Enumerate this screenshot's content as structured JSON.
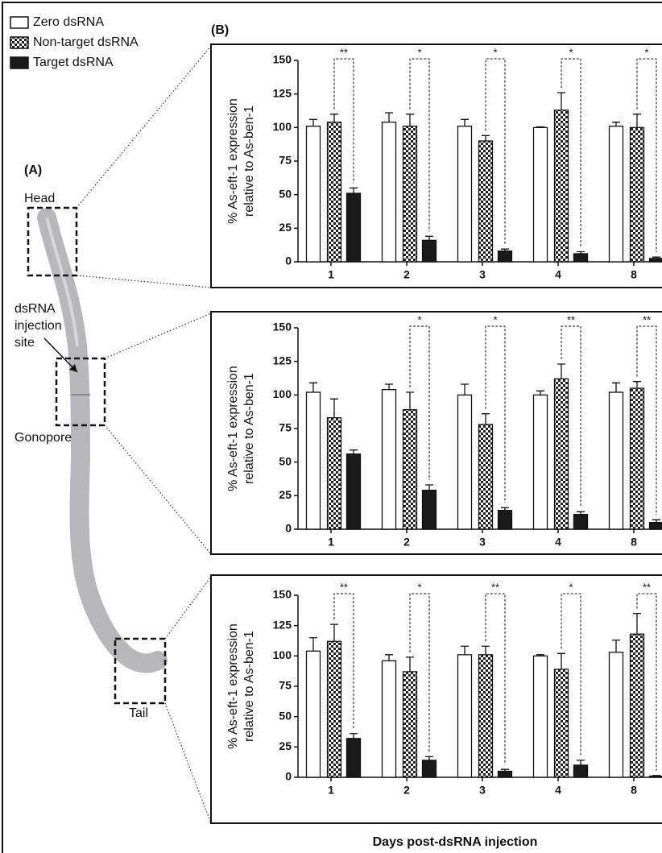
{
  "legend": [
    {
      "name": "Zero dsRNA",
      "fill": "#ffffff"
    },
    {
      "name": "Non-target dsRNA",
      "fill": "checker"
    },
    {
      "name": "Target dsRNA",
      "fill": "#1a1a1a"
    }
  ],
  "panel_a": {
    "label": "(A)",
    "head": "Head",
    "injection_site": [
      "dsRNA",
      "injection",
      "site"
    ],
    "gonopore": "Gonopore",
    "tail": "Tail"
  },
  "panel_b_label": "(B)",
  "x_label": "Days post-dsRNA injection",
  "chart_data": [
    {
      "type": "bar",
      "y_label": [
        "% As-eft-1 expression",
        "relative to As-ben-1"
      ],
      "categories": [
        "1",
        "2",
        "3",
        "4",
        "8"
      ],
      "ylim": [
        0,
        150
      ],
      "yticks": [
        0,
        25,
        50,
        75,
        100,
        125,
        150
      ],
      "series": [
        {
          "values": [
            101,
            104,
            101,
            100,
            101
          ],
          "errors": [
            5,
            7,
            5,
            0.5,
            3
          ]
        },
        {
          "values": [
            104,
            101,
            90,
            113,
            100
          ],
          "errors": [
            6,
            9,
            4,
            13,
            10
          ]
        },
        {
          "values": [
            51,
            16,
            8,
            6,
            2.5
          ],
          "errors": [
            4,
            3,
            1.5,
            1.5,
            1
          ]
        }
      ],
      "significance": [
        "**",
        "*",
        "*",
        "*",
        "*"
      ]
    },
    {
      "type": "bar",
      "y_label": [
        "% As-eft-1 expression",
        "relative to As-ben-1"
      ],
      "categories": [
        "1",
        "2",
        "3",
        "4",
        "8"
      ],
      "ylim": [
        0,
        150
      ],
      "yticks": [
        0,
        25,
        50,
        75,
        100,
        125,
        150
      ],
      "series": [
        {
          "values": [
            102,
            104,
            100,
            100,
            102
          ],
          "errors": [
            7,
            4,
            8,
            3,
            7
          ]
        },
        {
          "values": [
            83,
            89,
            78,
            112,
            105
          ],
          "errors": [
            14,
            13,
            8,
            11,
            5
          ]
        },
        {
          "values": [
            56,
            29,
            14,
            11,
            5
          ],
          "errors": [
            3,
            4,
            2,
            2,
            2
          ]
        }
      ],
      "significance": [
        null,
        "*",
        "*",
        "**",
        "**"
      ]
    },
    {
      "type": "bar",
      "y_label": [
        "% As-eft-1 expression",
        "relative to As-ben-1"
      ],
      "categories": [
        "1",
        "2",
        "3",
        "4",
        "8"
      ],
      "ylim": [
        0,
        150
      ],
      "yticks": [
        0,
        25,
        50,
        75,
        100,
        125,
        150
      ],
      "series": [
        {
          "values": [
            104,
            96,
            101,
            100,
            103
          ],
          "errors": [
            11,
            5,
            7,
            1,
            10
          ]
        },
        {
          "values": [
            112,
            87,
            101,
            89,
            118
          ],
          "errors": [
            14,
            12,
            7,
            13,
            17
          ]
        },
        {
          "values": [
            32,
            14,
            5,
            10,
            1
          ],
          "errors": [
            4,
            3,
            1.5,
            4,
            0.5
          ]
        }
      ],
      "significance": [
        "**",
        "*",
        "**",
        "*",
        "**"
      ]
    }
  ]
}
